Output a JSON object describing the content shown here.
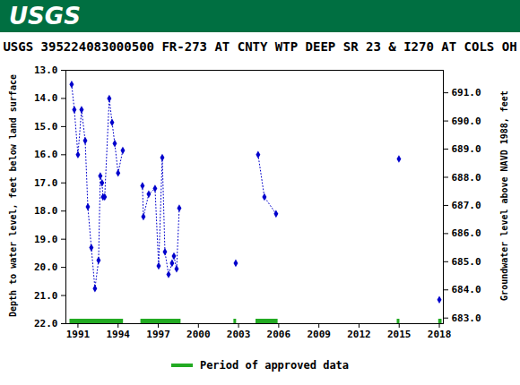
{
  "chart_data": {
    "type": "line",
    "header": "USGS",
    "title": "USGS 395224083000500 FR-273 AT CNTY WTP DEEP SR 23 & I270 AT COLS OH",
    "y_label": "Depth to water level, feet below land surface",
    "y2_label": "Groundwater level above NAVD 1988, feet",
    "color": "#0000cc",
    "marker": "diamond",
    "line_style": "dotted",
    "x": [
      1990.53,
      1990.73,
      1991.0,
      1991.27,
      1991.54,
      1991.74,
      1992.0,
      1992.27,
      1992.54,
      1992.67,
      1992.8,
      1992.87,
      1993.0,
      1993.34,
      1993.55,
      1993.75,
      1994.0,
      1994.35,
      1995.0,
      1995.82,
      1995.89,
      1996.29,
      1996.76,
      1997.03,
      1997.3,
      1997.5,
      1997.77,
      1998.03,
      1998.17,
      1998.37,
      1998.57,
      2000.0,
      2002.79,
      2003.5,
      2004.46,
      2004.93,
      2005.8,
      2010.0,
      2014.98,
      2016.5,
      2018.0
    ],
    "values": [
      13.5,
      14.4,
      16.0,
      14.4,
      15.5,
      17.85,
      19.3,
      20.75,
      19.75,
      16.75,
      17.0,
      17.5,
      17.5,
      14.0,
      14.85,
      15.6,
      16.65,
      15.85,
      null,
      17.1,
      18.2,
      17.4,
      17.2,
      19.95,
      16.1,
      19.45,
      20.25,
      19.85,
      19.6,
      20.05,
      17.9,
      null,
      19.85,
      null,
      16.0,
      17.5,
      18.1,
      null,
      16.15,
      null,
      21.15
    ],
    "xlim": [
      1990.1,
      2018.3
    ],
    "xticks": [
      1991,
      1994,
      1997,
      2000,
      2003,
      2006,
      2009,
      2012,
      2015,
      2018
    ],
    "ylim": [
      13,
      22
    ],
    "yticks": [
      {
        "value": 13,
        "label": "13.0"
      },
      {
        "value": 14,
        "label": "14.0"
      },
      {
        "value": 15,
        "label": "15.0"
      },
      {
        "value": 16,
        "label": "16.0"
      },
      {
        "value": 17,
        "label": "17.0"
      },
      {
        "value": 18,
        "label": "18.0"
      },
      {
        "value": 19,
        "label": "19.0"
      },
      {
        "value": 20,
        "label": "20.0"
      },
      {
        "value": 21,
        "label": "21.0"
      },
      {
        "value": 22,
        "label": "22.0"
      }
    ],
    "y2lim": [
      691.8,
      682.8
    ],
    "y2ticks": [
      {
        "value": 683,
        "label": "683.0"
      },
      {
        "value": 684,
        "label": "684.0"
      },
      {
        "value": 685,
        "label": "685.0"
      },
      {
        "value": 686,
        "label": "686.0"
      },
      {
        "value": 687,
        "label": "687.0"
      },
      {
        "value": 688,
        "label": "688.0"
      },
      {
        "value": 689,
        "label": "689.0"
      },
      {
        "value": 690,
        "label": "690.0"
      },
      {
        "value": 691,
        "label": "691.0"
      }
    ],
    "approved_periods": {
      "name": "Period of approved data",
      "color": "#22aa22",
      "ranges": [
        [
          1990.4,
          1994.4
        ],
        [
          1995.7,
          1998.7
        ],
        [
          2002.65,
          2002.85
        ],
        [
          2004.3,
          2005.95
        ],
        [
          2014.85,
          2015.05
        ],
        [
          2017.95,
          2018.2
        ]
      ]
    },
    "legend": "bottom",
    "grid": false
  }
}
